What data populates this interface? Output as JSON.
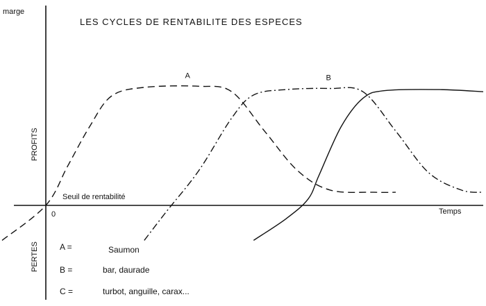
{
  "chart_data": {
    "type": "line",
    "title": "LES CYCLES DE RENTABILITE DES ESPECES",
    "ylabel": "marge",
    "xlabel": "Temps",
    "y_region_labels": {
      "positive": "PROFITS",
      "negative": "PERTES"
    },
    "origin_label": "0",
    "threshold_label": "Seuil de rentabilité",
    "xlim": [
      -2,
      20
    ],
    "ylim": [
      -2,
      6.5
    ],
    "series": [
      {
        "name": "A",
        "dash": "dashed",
        "points": [
          [
            -2,
            -1.6
          ],
          [
            0,
            0
          ],
          [
            1,
            1.8
          ],
          [
            2,
            3.6
          ],
          [
            3,
            5.0
          ],
          [
            4.5,
            5.4
          ],
          [
            7,
            5.45
          ],
          [
            8.5,
            5.2
          ],
          [
            10,
            3.4
          ],
          [
            11.5,
            1.6
          ],
          [
            13,
            0.7
          ],
          [
            15,
            0.6
          ],
          [
            16,
            0.6
          ]
        ]
      },
      {
        "name": "B",
        "dash": "dash-dot",
        "points": [
          [
            4.5,
            -1.6
          ],
          [
            5.5,
            -0.3
          ],
          [
            7,
            1.6
          ],
          [
            8.5,
            4.0
          ],
          [
            9.5,
            5.05
          ],
          [
            11,
            5.3
          ],
          [
            13,
            5.35
          ],
          [
            14.5,
            5.2
          ],
          [
            16,
            3.4
          ],
          [
            17.5,
            1.5
          ],
          [
            19,
            0.7
          ],
          [
            20,
            0.6
          ]
        ]
      },
      {
        "name": "C",
        "dash": "solid",
        "points": [
          [
            9.5,
            -1.6
          ],
          [
            11,
            -0.6
          ],
          [
            12,
            0.3
          ],
          [
            12.5,
            1.4
          ],
          [
            13.5,
            3.6
          ],
          [
            14.5,
            4.9
          ],
          [
            15.5,
            5.25
          ],
          [
            18,
            5.3
          ],
          [
            20,
            5.2
          ]
        ]
      }
    ],
    "legend": [
      {
        "key": "A =",
        "value": "Saumon"
      },
      {
        "key": "B =",
        "value": "bar, daurade"
      },
      {
        "key": "C =",
        "value": "turbot, anguille, carax..."
      }
    ]
  }
}
